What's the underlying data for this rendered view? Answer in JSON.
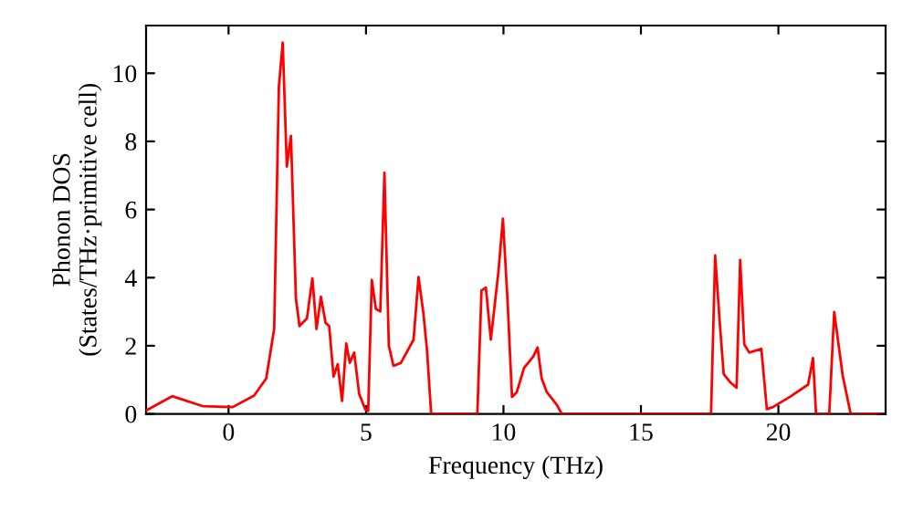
{
  "chart_data": {
    "type": "line",
    "xlabel": "Frequency (THz)",
    "ylabel": "Phonon DOS\n(States/THz·primitive cell)",
    "xlim": [
      -3,
      23.9
    ],
    "ylim": [
      0,
      11.4
    ],
    "xticks": [
      0,
      5,
      10,
      15,
      20
    ],
    "yticks": [
      0,
      2,
      4,
      6,
      8,
      10
    ],
    "grid": false,
    "marker": "none",
    "line_style": "solid",
    "series": [
      {
        "color": "#ff0000",
        "x": [
          -3,
          -2.05,
          -0.95,
          0.15,
          0.93,
          1.37,
          1.66,
          1.83,
          1.97,
          2.12,
          2.27,
          2.45,
          2.58,
          2.85,
          3.05,
          3.2,
          3.36,
          3.53,
          3.66,
          3.82,
          3.97,
          4.13,
          4.28,
          4.41,
          4.57,
          4.75,
          4.97,
          5.08,
          5.21,
          5.36,
          5.52,
          5.67,
          5.83,
          6.0,
          6.27,
          6.73,
          6.91,
          7.09,
          7.22,
          7.37,
          9.05,
          9.2,
          9.36,
          9.54,
          9.82,
          9.98,
          10.15,
          10.31,
          10.48,
          10.75,
          11.08,
          11.24,
          11.39,
          11.57,
          11.94,
          12.12,
          17.55,
          17.7,
          17.86,
          18.01,
          18.26,
          18.48,
          18.61,
          18.76,
          18.94,
          19.38,
          19.58,
          19.8,
          20.42,
          21.08,
          21.26,
          21.37,
          21.85,
          22.03,
          22.34,
          22.63,
          23.7
        ],
        "values": [
          0.1,
          0.52,
          0.23,
          0.2,
          0.54,
          1.04,
          2.5,
          9.6,
          10.9,
          7.26,
          8.16,
          3.39,
          2.58,
          2.8,
          3.98,
          2.49,
          3.44,
          2.67,
          2.58,
          1.1,
          1.46,
          0.38,
          2.07,
          1.5,
          1.8,
          0.59,
          0.14,
          0.09,
          3.93,
          3.08,
          3.01,
          7.08,
          2.0,
          1.41,
          1.5,
          2.18,
          4.02,
          2.94,
          1.86,
          0,
          0,
          3.62,
          3.71,
          2.18,
          4.2,
          5.73,
          3.3,
          0.5,
          0.63,
          1.35,
          1.68,
          1.95,
          1.04,
          0.65,
          0.27,
          0,
          0,
          4.65,
          2.76,
          1.17,
          0.92,
          0.77,
          4.52,
          2.04,
          1.8,
          1.91,
          0.14,
          0.2,
          0.5,
          0.86,
          1.64,
          0,
          0,
          2.99,
          1.12,
          0,
          0
        ]
      }
    ]
  }
}
